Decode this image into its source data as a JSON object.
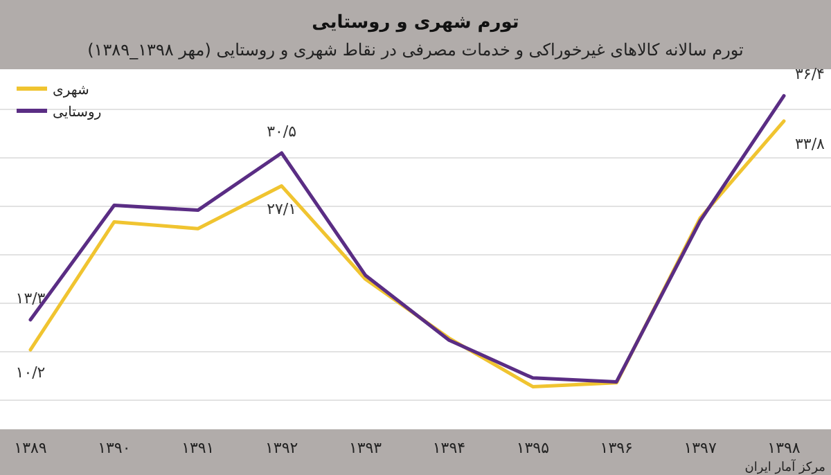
{
  "chart_data": {
    "type": "line",
    "title": "تورم شهری و روستایی",
    "subtitle": "تورم سالانه کالاهای غیرخوراکی و خدمات مصرفی در نقاط شهری و روستایی (مهر ۱۳۹۸_۱۳۸۹)",
    "categories": [
      "۱۳۸۹",
      "۱۳۹۰",
      "۱۳۹۱",
      "۱۳۹۲",
      "۱۳۹۳",
      "۱۳۹۴",
      "۱۳۹۵",
      "۱۳۹۶",
      "۱۳۹۷",
      "۱۳۹۸"
    ],
    "series": [
      {
        "name": "شهری",
        "color": "#f0c430",
        "values": [
          10.2,
          23.4,
          22.7,
          27.1,
          17.5,
          11.4,
          6.4,
          6.8,
          23.8,
          33.8
        ],
        "value_labels": [
          "۱۰/۲",
          null,
          null,
          "۲۷/۱",
          null,
          null,
          null,
          null,
          null,
          "۳۳/۸"
        ]
      },
      {
        "name": "روستایی",
        "color": "#5a2d84",
        "values": [
          13.3,
          25.1,
          24.6,
          30.5,
          17.9,
          11.2,
          7.3,
          6.9,
          23.5,
          36.4
        ],
        "value_labels": [
          "۱۳/۳",
          null,
          null,
          "۳۰/۵",
          null,
          null,
          null,
          null,
          null,
          "۳۶/۴"
        ]
      }
    ],
    "yticks": [
      {
        "value": 5,
        "label": null
      },
      {
        "value": 10,
        "label": null
      },
      {
        "value": 15,
        "label": null
      },
      {
        "value": 20,
        "label": null
      },
      {
        "value": 25,
        "label": null
      },
      {
        "value": 30,
        "label": null
      },
      {
        "value": 35,
        "label": null
      }
    ],
    "grid": "y",
    "legend": "top left",
    "tick_labels": "x",
    "annotations": [
      "مرکز آمار ایران"
    ]
  }
}
